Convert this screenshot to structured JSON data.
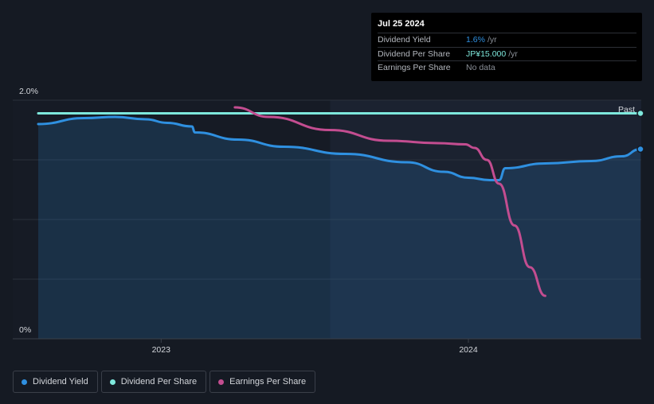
{
  "tooltip": {
    "date": "Jul 25 2024",
    "rows": [
      {
        "label": "Dividend Yield",
        "value": "1.6%",
        "unit": "/yr",
        "color": "#2f90e0"
      },
      {
        "label": "Dividend Per Share",
        "value": "JP¥15.000",
        "unit": "/yr",
        "color": "#7ee8dc"
      },
      {
        "label": "Earnings Per Share",
        "value": "No data",
        "unit": "",
        "color": "#8a8f97"
      }
    ]
  },
  "legend": [
    {
      "label": "Dividend Yield",
      "color": "#2f90e0"
    },
    {
      "label": "Dividend Per Share",
      "color": "#7ee8dc"
    },
    {
      "label": "Earnings Per Share",
      "color": "#c34d90"
    }
  ],
  "chart_data": {
    "type": "line",
    "title": "",
    "xlabel": "",
    "ylabel": "",
    "ylim": [
      0,
      2.0
    ],
    "y_tick_labels": [
      "2.0%",
      "0%"
    ],
    "x_ticks": [
      {
        "label": "2023",
        "x": 2023.0
      },
      {
        "label": "2024",
        "x": 2024.0
      }
    ],
    "xlim": [
      2022.6,
      2024.56
    ],
    "past_region_start": 2023.55,
    "past_label": "Past",
    "series": [
      {
        "name": "Dividend Yield",
        "color": "#2f90e0",
        "fill": true,
        "end_marker": true,
        "x": [
          2022.6,
          2022.75,
          2022.85,
          2022.95,
          2023.02,
          2023.1,
          2023.11,
          2023.25,
          2023.4,
          2023.6,
          2023.8,
          2023.92,
          2024.0,
          2024.07,
          2024.1,
          2024.12,
          2024.25,
          2024.4,
          2024.5,
          2024.56
        ],
        "y": [
          1.8,
          1.85,
          1.86,
          1.84,
          1.81,
          1.78,
          1.73,
          1.67,
          1.61,
          1.55,
          1.48,
          1.4,
          1.35,
          1.33,
          1.33,
          1.43,
          1.47,
          1.49,
          1.53,
          1.59
        ]
      },
      {
        "name": "Dividend Per Share",
        "color": "#7ee8dc",
        "fill": false,
        "end_marker": true,
        "x": [
          2022.6,
          2024.56
        ],
        "y": [
          1.89,
          1.89
        ]
      },
      {
        "name": "Earnings Per Share",
        "color": "#c34d90",
        "fill": false,
        "end_marker": false,
        "x": [
          2023.24,
          2023.35,
          2023.55,
          2023.74,
          2023.9,
          2023.99,
          2024.02,
          2024.06,
          2024.1,
          2024.15,
          2024.2,
          2024.25
        ],
        "y": [
          1.94,
          1.86,
          1.75,
          1.66,
          1.64,
          1.63,
          1.6,
          1.5,
          1.3,
          0.95,
          0.6,
          0.36
        ]
      }
    ]
  }
}
